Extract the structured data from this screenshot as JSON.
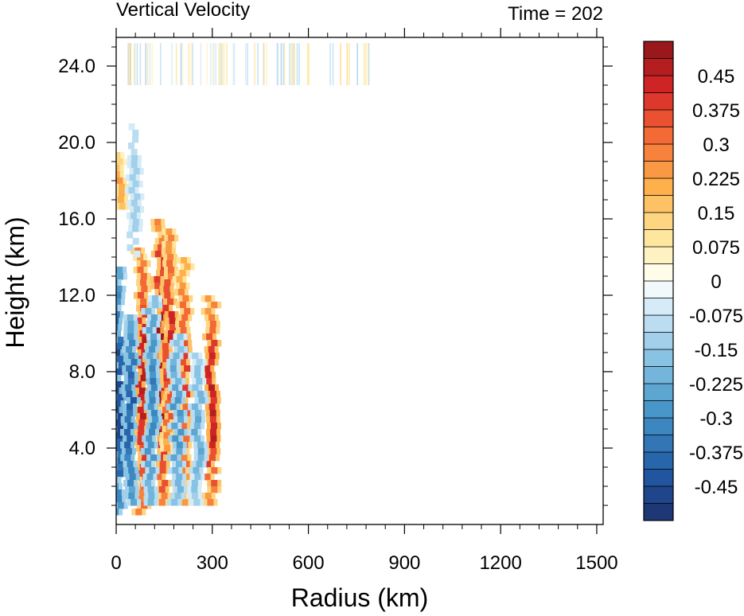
{
  "chart_data": {
    "type": "heatmap",
    "title_left": "Vertical Velocity",
    "title_right": "Time = 202",
    "xlabel": "Radius (km)",
    "ylabel": "Height (km)",
    "xlim": [
      0,
      1520
    ],
    "ylim": [
      0,
      25.5
    ],
    "x_ticks": [
      0,
      300,
      600,
      900,
      1200,
      1500
    ],
    "x_tick_labels": [
      "0",
      "300",
      "600",
      "900",
      "1200",
      "1500"
    ],
    "y_ticks": [
      4,
      8,
      12,
      16,
      20,
      24
    ],
    "y_tick_labels": [
      "4.0",
      "8.0",
      "12.0",
      "16.0",
      "20.0",
      "24.0"
    ],
    "colorbar": {
      "min": -0.525,
      "max": 0.525,
      "step": 0.0375,
      "labels": [
        "0.45",
        "0.375",
        "0.3",
        "0.225",
        "0.15",
        "0.075",
        "0",
        "-0.075",
        "-0.15",
        "-0.225",
        "-0.3",
        "-0.375",
        "-0.45"
      ],
      "label_values": [
        0.45,
        0.375,
        0.3,
        0.225,
        0.15,
        0.075,
        0,
        -0.075,
        -0.15,
        -0.225,
        -0.3,
        -0.375,
        -0.45
      ]
    },
    "field_features": [
      {
        "kind": "updraft",
        "r": 80,
        "z0": 0.5,
        "z1": 14.5,
        "w": 0.5
      },
      {
        "kind": "updraft",
        "r": 140,
        "z0": 1.0,
        "z1": 16.0,
        "w": 0.55
      },
      {
        "kind": "updraft",
        "r": 165,
        "z0": 4.0,
        "z1": 15.5,
        "w": 0.45
      },
      {
        "kind": "updraft",
        "r": 210,
        "z0": 1.0,
        "z1": 14.0,
        "w": 0.4
      },
      {
        "kind": "updraft",
        "r": 295,
        "z0": 1.0,
        "z1": 12.0,
        "w": 0.5
      },
      {
        "kind": "updraft",
        "r": 12,
        "z0": 16.5,
        "z1": 19.5,
        "w": 0.25
      },
      {
        "kind": "downdraft",
        "r": 5,
        "z0": 0.5,
        "z1": 13.5,
        "w": -0.5
      },
      {
        "kind": "downdraft",
        "r": 45,
        "z0": 1.0,
        "z1": 11.0,
        "w": -0.45
      },
      {
        "kind": "downdraft",
        "r": 110,
        "z0": 1.0,
        "z1": 12.0,
        "w": -0.35
      },
      {
        "kind": "downdraft",
        "r": 190,
        "z0": 1.0,
        "z1": 10.0,
        "w": -0.3
      },
      {
        "kind": "downdraft",
        "r": 255,
        "z0": 1.0,
        "z1": 9.0,
        "w": -0.25
      },
      {
        "kind": "downdraft",
        "r": 55,
        "z0": 14.0,
        "z1": 21.0,
        "w": -0.15
      }
    ]
  }
}
